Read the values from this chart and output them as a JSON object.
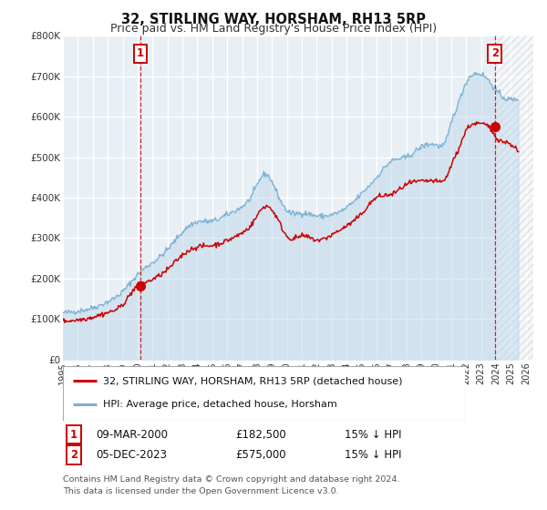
{
  "title": "32, STIRLING WAY, HORSHAM, RH13 5RP",
  "subtitle": "Price paid vs. HM Land Registry's House Price Index (HPI)",
  "ylim": [
    0,
    800000
  ],
  "xlim_start": 1995.0,
  "xlim_end": 2026.5,
  "yticks": [
    0,
    100000,
    200000,
    300000,
    400000,
    500000,
    600000,
    700000,
    800000
  ],
  "ytick_labels": [
    "£0",
    "£100K",
    "£200K",
    "£300K",
    "£400K",
    "£500K",
    "£600K",
    "£700K",
    "£800K"
  ],
  "xticks": [
    1995,
    1996,
    1997,
    1998,
    1999,
    2000,
    2001,
    2002,
    2003,
    2004,
    2005,
    2006,
    2007,
    2008,
    2009,
    2010,
    2011,
    2012,
    2013,
    2014,
    2015,
    2016,
    2017,
    2018,
    2019,
    2020,
    2021,
    2022,
    2023,
    2024,
    2025,
    2026
  ],
  "red_line_color": "#cc0000",
  "blue_line_color": "#7ab0d4",
  "blue_fill_color": "#b8d4e8",
  "plot_bg_color": "#e8eff5",
  "grid_color": "#ffffff",
  "marker1_date": 2000.19,
  "marker1_value": 182500,
  "marker2_date": 2023.92,
  "marker2_value": 575000,
  "vline1_x": 2000.19,
  "vline2_x": 2023.92,
  "legend_line1": "32, STIRLING WAY, HORSHAM, RH13 5RP (detached house)",
  "legend_line2": "HPI: Average price, detached house, Horsham",
  "annotation1_num": "1",
  "annotation1_date": "09-MAR-2000",
  "annotation1_price": "£182,500",
  "annotation1_hpi": "15% ↓ HPI",
  "annotation2_num": "2",
  "annotation2_date": "05-DEC-2023",
  "annotation2_price": "£575,000",
  "annotation2_hpi": "15% ↓ HPI",
  "footer_line1": "Contains HM Land Registry data © Crown copyright and database right 2024.",
  "footer_line2": "This data is licensed under the Open Government Licence v3.0."
}
